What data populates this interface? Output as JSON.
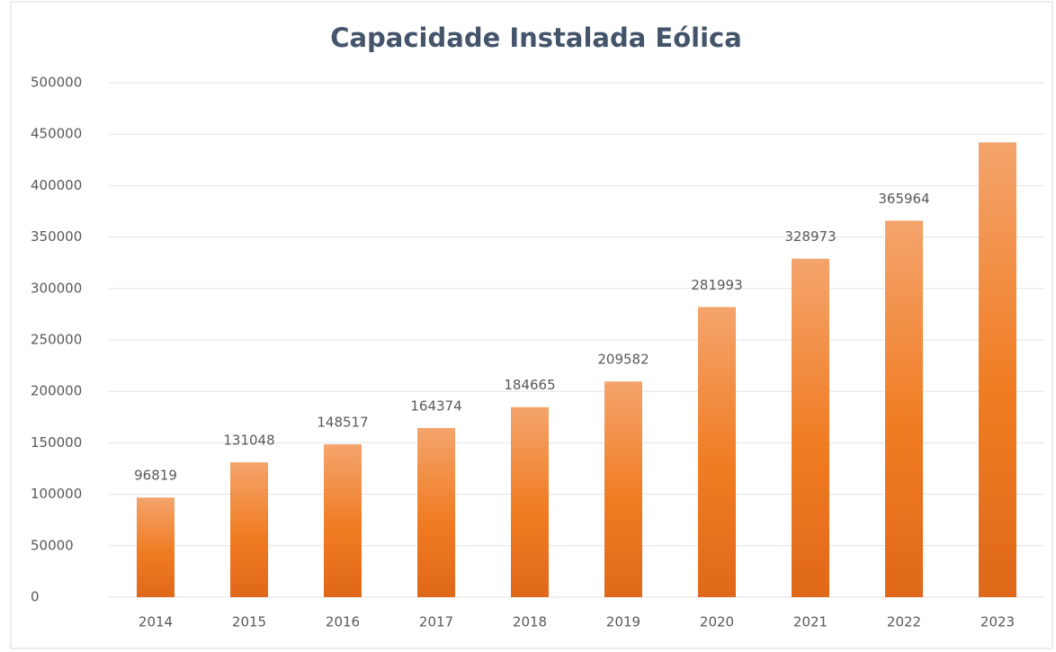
{
  "chart_data": {
    "type": "bar",
    "title": "Capacidade Instalada Eólica",
    "categories": [
      "2014",
      "2015",
      "2016",
      "2017",
      "2018",
      "2019",
      "2020",
      "2021",
      "2022",
      "2023"
    ],
    "values": [
      96819,
      131048,
      148517,
      164374,
      184665,
      209582,
      281993,
      328973,
      365964,
      442000
    ],
    "value_labels": [
      "96819",
      "131048",
      "148517",
      "164374",
      "184665",
      "209582",
      "281993",
      "328973",
      "365964",
      null
    ],
    "color": "#f07c22",
    "ylim": [
      0,
      500000
    ],
    "yticks": [
      0,
      50000,
      100000,
      150000,
      200000,
      250000,
      300000,
      350000,
      400000,
      450000,
      500000
    ],
    "grid": true
  }
}
